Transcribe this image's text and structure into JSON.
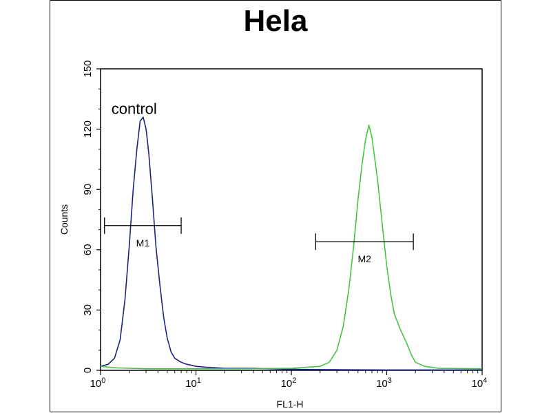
{
  "chart_data": {
    "type": "line",
    "title": "Hela",
    "xlabel": "FL1-H",
    "ylabel": "Counts",
    "xscale": "log",
    "xlim": [
      1,
      10000
    ],
    "ylim": [
      0,
      150
    ],
    "x_ticks": [
      {
        "base": "10",
        "exp": "0",
        "value": 1
      },
      {
        "base": "10",
        "exp": "1",
        "value": 10
      },
      {
        "base": "10",
        "exp": "2",
        "value": 100
      },
      {
        "base": "10",
        "exp": "3",
        "value": 1000
      },
      {
        "base": "10",
        "exp": "4",
        "value": 10000
      }
    ],
    "y_ticks": [
      "0",
      "30",
      "60",
      "90",
      "120",
      "150"
    ],
    "annotations": [
      {
        "text": "control",
        "x": 1.3,
        "y": 130
      }
    ],
    "markers": [
      {
        "label": "M1",
        "x_start": 1.1,
        "x_end": 7.0,
        "y": 72
      },
      {
        "label": "M2",
        "x_start": 180,
        "x_end": 1900,
        "y": 64
      }
    ],
    "series": [
      {
        "color": "#1a237e",
        "points": [
          [
            1.0,
            2
          ],
          [
            1.2,
            3
          ],
          [
            1.4,
            6
          ],
          [
            1.6,
            15
          ],
          [
            1.8,
            35
          ],
          [
            2.0,
            62
          ],
          [
            2.2,
            90
          ],
          [
            2.4,
            110
          ],
          [
            2.6,
            124
          ],
          [
            2.8,
            126
          ],
          [
            3.0,
            120
          ],
          [
            3.2,
            108
          ],
          [
            3.5,
            85
          ],
          [
            3.8,
            62
          ],
          [
            4.2,
            42
          ],
          [
            4.6,
            26
          ],
          [
            5.0,
            16
          ],
          [
            5.5,
            9
          ],
          [
            6.0,
            6
          ],
          [
            7.0,
            4
          ],
          [
            8.0,
            3
          ],
          [
            10,
            2
          ],
          [
            13,
            1.5
          ],
          [
            20,
            1
          ],
          [
            40,
            1
          ],
          [
            80,
            0.6
          ],
          [
            150,
            0.4
          ],
          [
            300,
            0.3
          ],
          [
            1000,
            0.2
          ],
          [
            10000,
            0.2
          ]
        ]
      },
      {
        "color": "#43c443",
        "points": [
          [
            1.0,
            2
          ],
          [
            1.5,
            1.2
          ],
          [
            3,
            0.8
          ],
          [
            10,
            0.8
          ],
          [
            30,
            0.8
          ],
          [
            100,
            1
          ],
          [
            200,
            2
          ],
          [
            250,
            4
          ],
          [
            300,
            10
          ],
          [
            350,
            22
          ],
          [
            400,
            40
          ],
          [
            450,
            62
          ],
          [
            500,
            85
          ],
          [
            550,
            102
          ],
          [
            600,
            115
          ],
          [
            650,
            122
          ],
          [
            700,
            116
          ],
          [
            800,
            95
          ],
          [
            900,
            72
          ],
          [
            1000,
            52
          ],
          [
            1100,
            38
          ],
          [
            1200,
            28
          ],
          [
            1400,
            20
          ],
          [
            1600,
            14
          ],
          [
            1800,
            8
          ],
          [
            2000,
            4
          ],
          [
            2500,
            2
          ],
          [
            3500,
            1
          ],
          [
            10000,
            0.8
          ]
        ]
      }
    ]
  }
}
